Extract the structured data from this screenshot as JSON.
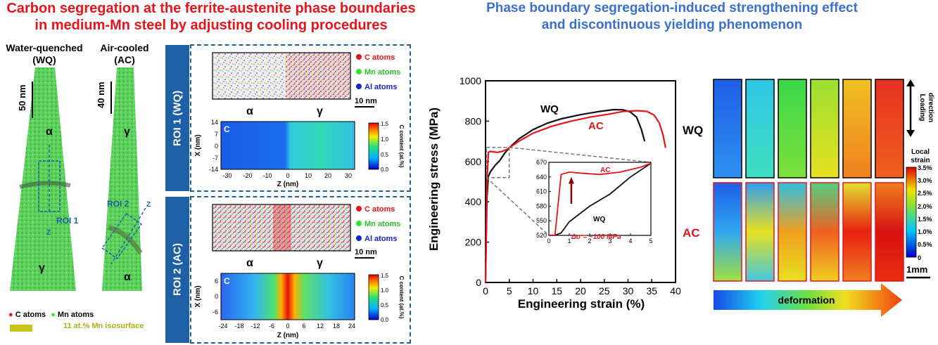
{
  "left_title": [
    "Carbon segregation at the ferrite-austenite phase boundaries",
    "in medium-Mn steel by adjusting cooling procedures"
  ],
  "right_title": [
    "Phase boundary segregation-induced strengthening effect",
    "and discontinuous yielding phenomenon"
  ],
  "tips": {
    "wq_label": [
      "Water-quenched",
      "(WQ)"
    ],
    "ac_label": [
      "Air-cooled",
      "(AC)"
    ],
    "wq_scale": "50 nm",
    "ac_scale": "40 nm",
    "alpha": "α",
    "gamma": "γ",
    "roi1": "ROI 1",
    "roi2": "ROI 2",
    "z": "Z",
    "legend_c": "C atoms",
    "legend_mn": "Mn atoms",
    "isosurface": "11 at.% Mn isosurface",
    "colors": {
      "C": "#e8141b",
      "Mn": "#2ee62e",
      "Al": "#1522d8",
      "tip": "#3dbb3d",
      "iso": "#c8c21a"
    }
  },
  "roi_panels": [
    {
      "side_label": "ROI 1 (WQ)",
      "map_letter": "C",
      "legend": [
        "C atoms",
        "Mn atoms",
        "Al atoms"
      ],
      "scale": "10 nm",
      "phase_left": "α",
      "phase_right": "γ",
      "xlabel": "Z (nm)",
      "ylabel": "X (nm)",
      "xticks": [
        "-30",
        "-20",
        "-10",
        "0",
        "10",
        "20",
        "30"
      ],
      "yticks": [
        "14",
        "7",
        "0",
        "-7",
        "-14"
      ],
      "cbar_ticks": [
        "1.5",
        "1.0",
        "0.5",
        "0.0"
      ],
      "cbar_label": "C content (at.%)"
    },
    {
      "side_label": "ROI 2 (AC)",
      "map_letter": "C",
      "legend": [
        "C atoms",
        "Mn atoms",
        "Al atoms"
      ],
      "scale": "10 nm",
      "phase_left": "α",
      "phase_right": "γ",
      "xlabel": "Z (nm)",
      "ylabel": "X (nm)",
      "xticks": [
        "-24",
        "-18",
        "-12",
        "-6",
        "0",
        "6",
        "12",
        "18",
        "24"
      ],
      "yticks": [
        "6",
        "0",
        "-6"
      ],
      "cbar_ticks": [
        "1.5",
        "1.0",
        "0.5",
        "0.0"
      ],
      "cbar_label": "C content (at.%)"
    }
  ],
  "chart_data": {
    "type": "line",
    "xlabel": "Engineering strain (%)",
    "ylabel": "Engineering stress (MPa)",
    "xlim": [
      0,
      40
    ],
    "ylim": [
      0,
      1000
    ],
    "xticks": [
      "0",
      "5",
      "10",
      "15",
      "20",
      "25",
      "30",
      "35",
      "40"
    ],
    "yticks": [
      "0",
      "200",
      "400",
      "600",
      "800",
      "1000"
    ],
    "series": [
      {
        "name": "WQ",
        "color": "#111111",
        "x": [
          0,
          0.3,
          0.6,
          1.0,
          2.0,
          3.0,
          4.0,
          5.0,
          7,
          10,
          13,
          16,
          20,
          24,
          27,
          29,
          30.5,
          31.8,
          32.8,
          33.5
        ],
        "y": [
          0,
          420,
          525,
          548,
          580,
          605,
          640,
          668,
          712,
          758,
          790,
          812,
          832,
          848,
          857,
          856,
          845,
          820,
          760,
          700
        ]
      },
      {
        "name": "AC",
        "color": "#e8141b",
        "x": [
          0,
          0.3,
          0.6,
          1.0,
          1.5,
          2.5,
          3.5,
          4.5,
          5.0,
          7,
          10,
          14,
          18,
          22,
          26,
          29,
          32,
          34,
          35.5,
          36.6,
          37.4,
          37.9
        ],
        "y": [
          0,
          500,
          645,
          650,
          648,
          645,
          650,
          660,
          668,
          700,
          740,
          775,
          800,
          820,
          835,
          848,
          852,
          848,
          830,
          790,
          730,
          668
        ]
      }
    ],
    "inset": {
      "xlim": [
        0,
        5
      ],
      "ylim": [
        520,
        670
      ],
      "xticks": [
        "0",
        "1",
        "2",
        "3",
        "4",
        "5"
      ],
      "yticks": [
        "520",
        "550",
        "580",
        "610",
        "640",
        "670"
      ],
      "annotation": "Δσ = ~100 MPa",
      "ac_label": "AC",
      "wq_label": "WQ"
    }
  },
  "strain_maps": {
    "rows": [
      "WQ",
      "AC"
    ],
    "loading_label": [
      "Loading",
      "direction"
    ],
    "cbar_title": [
      "Local",
      "strain"
    ],
    "cbar_ticks": [
      "3.5%",
      "3.0%",
      "2.5%",
      "2.0%",
      "1.5%",
      "1.0%",
      "0.5%",
      "0"
    ],
    "scale": "1mm",
    "arrow_label": "deformation"
  }
}
